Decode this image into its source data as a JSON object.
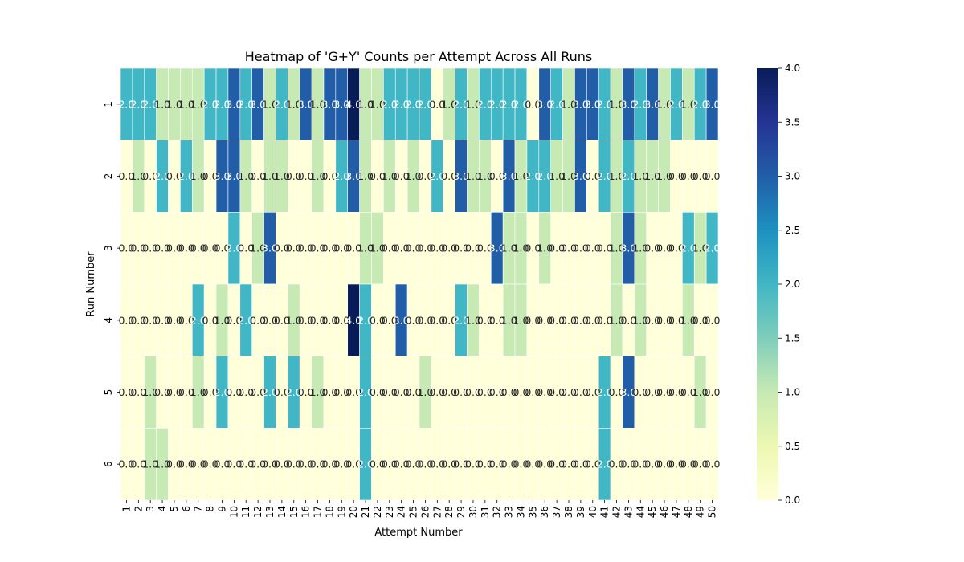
{
  "chart_data": {
    "type": "heatmap",
    "title": "Heatmap of 'G+Y' Counts per Attempt Across All Runs",
    "xlabel": "Attempt Number",
    "ylabel": "Run Number",
    "x_categories": [
      "1",
      "2",
      "3",
      "4",
      "5",
      "6",
      "7",
      "8",
      "9",
      "10",
      "11",
      "12",
      "13",
      "14",
      "15",
      "16",
      "17",
      "18",
      "19",
      "20",
      "21",
      "22",
      "23",
      "24",
      "25",
      "26",
      "27",
      "28",
      "29",
      "30",
      "31",
      "32",
      "33",
      "34",
      "35",
      "36",
      "37",
      "38",
      "39",
      "40",
      "41",
      "42",
      "43",
      "44",
      "45",
      "46",
      "47",
      "48",
      "49",
      "50"
    ],
    "y_categories": [
      "1",
      "2",
      "3",
      "4",
      "5",
      "6"
    ],
    "values": [
      [
        2,
        2,
        2,
        1,
        1,
        1,
        1,
        2,
        2,
        3,
        2,
        3,
        1,
        2,
        1,
        3,
        1,
        3,
        3,
        4,
        1,
        1,
        2,
        2,
        2,
        2,
        0,
        1,
        2,
        1,
        2,
        2,
        2,
        2,
        0,
        3,
        2,
        1,
        3,
        3,
        2,
        1,
        3,
        2,
        3,
        1,
        2,
        1,
        2,
        3
      ],
      [
        0,
        1,
        0,
        2,
        0,
        2,
        1,
        0,
        3,
        3,
        1,
        0,
        1,
        1,
        0,
        0,
        1,
        0,
        2,
        3,
        1,
        0,
        1,
        0,
        1,
        0,
        2,
        0,
        3,
        1,
        1,
        0,
        3,
        1,
        2,
        2,
        1,
        1,
        3,
        0,
        2,
        1,
        2,
        1,
        1,
        1,
        0,
        0,
        0,
        0
      ],
      [
        0,
        0,
        0,
        0,
        0,
        0,
        0,
        0,
        0,
        2,
        0,
        1,
        3,
        0,
        0,
        0,
        0,
        0,
        0,
        0,
        1,
        1,
        0,
        0,
        0,
        0,
        0,
        0,
        0,
        0,
        0,
        3,
        1,
        1,
        0,
        1,
        0,
        0,
        0,
        0,
        0,
        1,
        3,
        1,
        0,
        0,
        0,
        2,
        1,
        2
      ],
      [
        0,
        0,
        0,
        0,
        0,
        0,
        2,
        0,
        1,
        0,
        2,
        0,
        0,
        0,
        1,
        0,
        0,
        0,
        0,
        4,
        2,
        0,
        0,
        3,
        0,
        0,
        0,
        0,
        2,
        1,
        0,
        0,
        1,
        1,
        0,
        0,
        0,
        0,
        0,
        0,
        0,
        1,
        0,
        1,
        0,
        0,
        0,
        1,
        0,
        0
      ],
      [
        0,
        0,
        1,
        0,
        0,
        0,
        1,
        0,
        2,
        0,
        0,
        0,
        2,
        0,
        2,
        0,
        1,
        0,
        0,
        0,
        2,
        0,
        0,
        0,
        0,
        1,
        0,
        0,
        0,
        0,
        0,
        0,
        0,
        0,
        0,
        0,
        0,
        0,
        0,
        0,
        2,
        0,
        3,
        0,
        0,
        0,
        0,
        0,
        1,
        0
      ],
      [
        0,
        0,
        1,
        1,
        0,
        0,
        0,
        0,
        0,
        0,
        0,
        0,
        0,
        0,
        0,
        0,
        0,
        0,
        0,
        0,
        2,
        0,
        0,
        0,
        0,
        0,
        0,
        0,
        0,
        0,
        0,
        0,
        0,
        0,
        0,
        0,
        0,
        0,
        0,
        0,
        2,
        0,
        0,
        0,
        0,
        0,
        0,
        0,
        0,
        0
      ]
    ],
    "annotation_format": "0.0",
    "colorscale": "YlGnBu",
    "vmin": 0,
    "vmax": 4,
    "colorbar_ticks": [
      "0.0",
      "0.5",
      "1.0",
      "1.5",
      "2.0",
      "2.5",
      "3.0",
      "3.5",
      "4.0"
    ],
    "colors": {
      "stops": [
        "#ffffd9",
        "#edf8b1",
        "#c7e9b4",
        "#7fcdbb",
        "#41b6c4",
        "#1d91c0",
        "#225ea8",
        "#253494",
        "#081d58"
      ],
      "annotation_light": "#ffffff",
      "annotation_dark": "#262626",
      "cell_border": "#ffffff"
    }
  }
}
